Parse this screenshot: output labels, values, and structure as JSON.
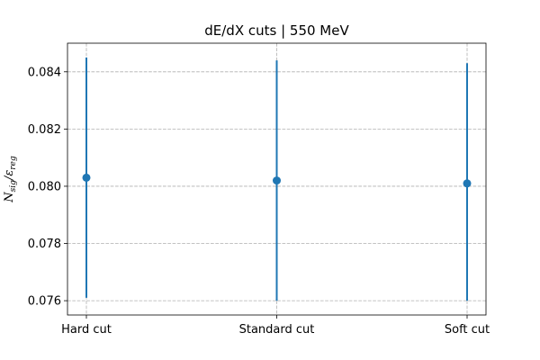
{
  "chart_data": {
    "type": "scatter",
    "title": "dE/dX cuts | 550 MeV",
    "ylabel": {
      "main": "N",
      "main_sub": "sig",
      "den": "ε",
      "den_sub": "reg"
    },
    "xlabel": "",
    "categories": [
      "Hard cut",
      "Standard cut",
      "Soft cut"
    ],
    "series": [
      {
        "values": [
          0.0803,
          0.0802,
          0.0801
        ],
        "err_low": [
          0.0761,
          0.076,
          0.076
        ],
        "err_high": [
          0.0845,
          0.0844,
          0.0843
        ],
        "color": "#1f77b4"
      }
    ],
    "ylim": [
      0.0755,
      0.085
    ],
    "yticks": [
      0.076,
      0.078,
      0.08,
      0.082,
      0.084
    ],
    "ytick_labels": [
      "0.076",
      "0.078",
      "0.080",
      "0.082",
      "0.084"
    ],
    "grid": true
  }
}
